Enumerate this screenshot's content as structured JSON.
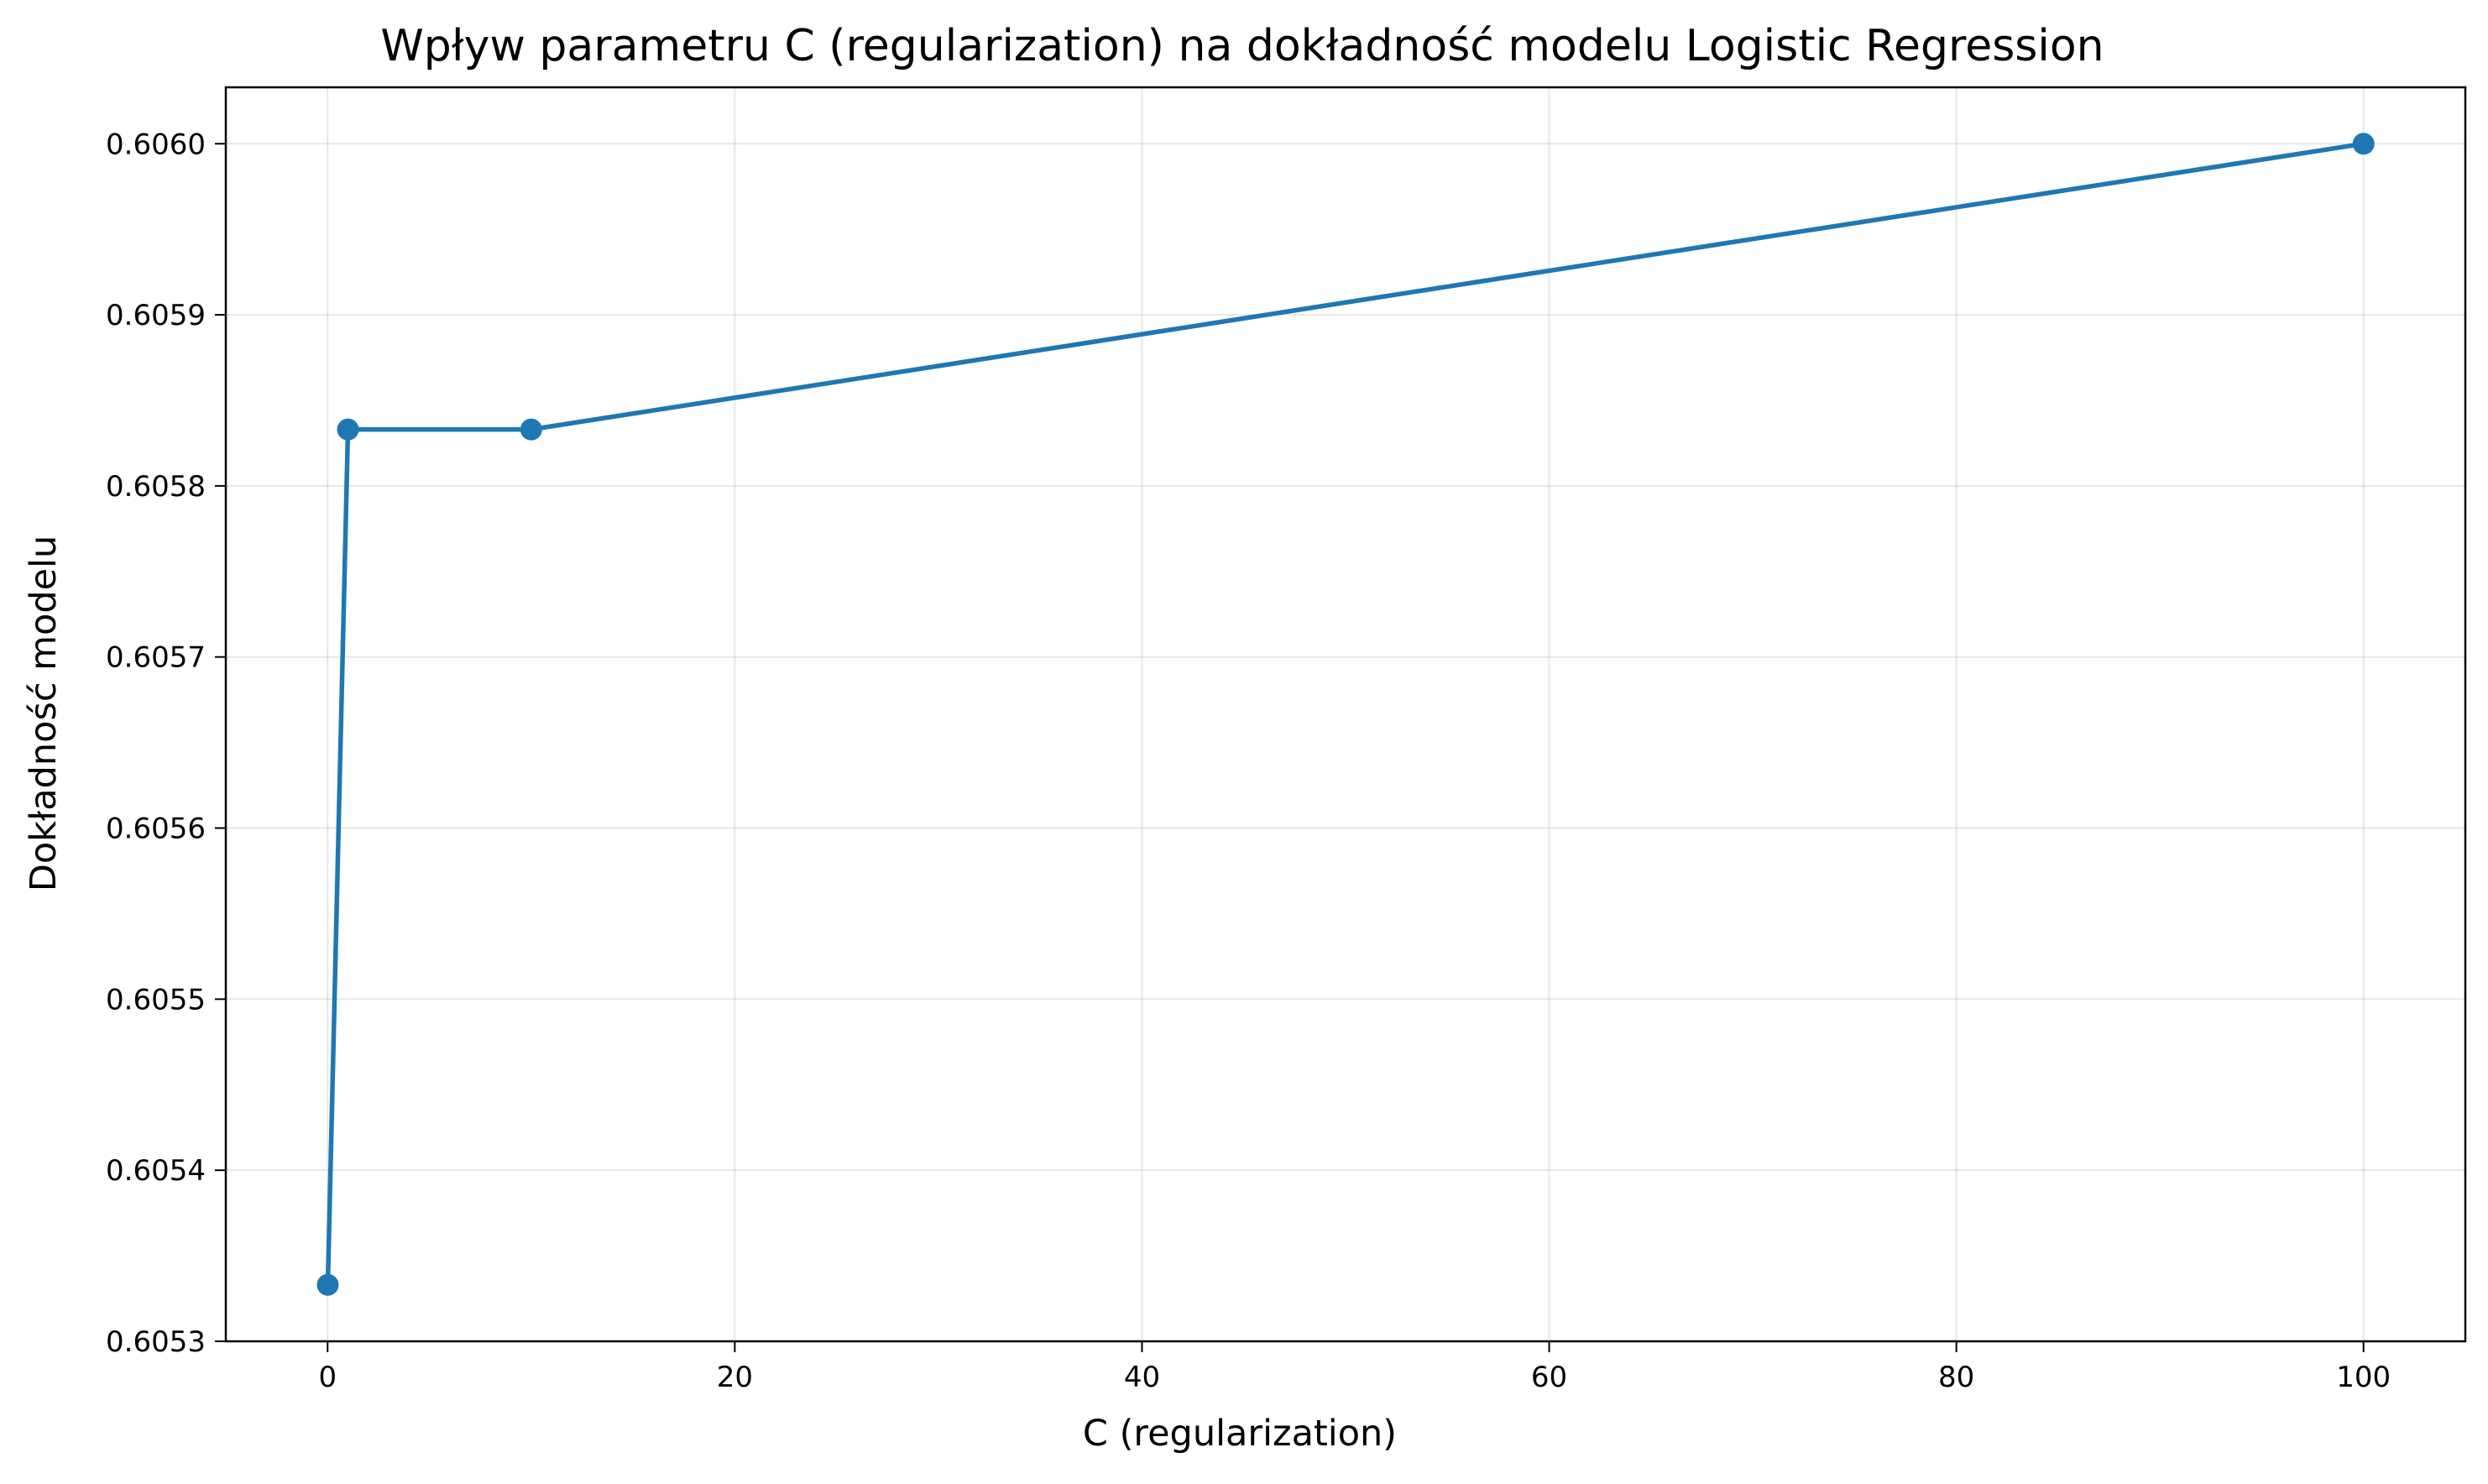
{
  "chart_data": {
    "type": "line",
    "title": "Wpływ parametru C (regularization) na dokładność modelu Logistic Regression",
    "xlabel": "C (regularization)",
    "ylabel": "Dokładność modelu",
    "xlim": [
      -5,
      105
    ],
    "ylim": [
      0.6053,
      0.606033
    ],
    "x_ticks": [
      0,
      20,
      40,
      60,
      80,
      100
    ],
    "x_tick_labels": [
      "0",
      "20",
      "40",
      "60",
      "80",
      "100"
    ],
    "y_ticks": [
      0.6053,
      0.6054,
      0.6055,
      0.6056,
      0.6057,
      0.6058,
      0.6059,
      0.606
    ],
    "y_tick_labels": [
      "0.6053",
      "0.6054",
      "0.6055",
      "0.6056",
      "0.6057",
      "0.6058",
      "0.6059",
      "0.6060"
    ],
    "grid": true,
    "series": [
      {
        "color": "#1f77b4",
        "marker": "circle",
        "x": [
          0.01,
          1,
          10,
          100
        ],
        "y": [
          0.605333,
          0.605833,
          0.605833,
          0.606
        ]
      }
    ]
  }
}
